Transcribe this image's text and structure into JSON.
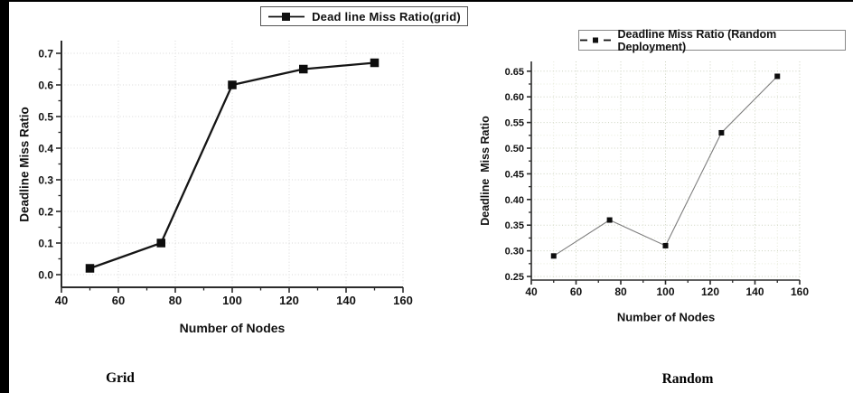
{
  "page": {
    "background": "#ffffff",
    "frame_color": "#000000"
  },
  "chart_data": [
    {
      "type": "line",
      "title": "Dead line Miss Ratio(grid)",
      "caption": "Grid",
      "xlabel": "Number of Nodes",
      "ylabel": "Deadline Miss Ratio",
      "x": [
        50,
        75,
        100,
        125,
        150
      ],
      "y": [
        0.02,
        0.1,
        0.6,
        0.65,
        0.67
      ],
      "xlim": [
        40,
        160
      ],
      "ylim": [
        -0.04,
        0.74
      ],
      "xticks": [
        40,
        60,
        80,
        100,
        120,
        140,
        160
      ],
      "yticks": [
        0.0,
        0.1,
        0.2,
        0.3,
        0.4,
        0.5,
        0.6,
        0.7
      ],
      "x_tick_labels": [
        "40",
        "60",
        "80",
        "100",
        "120",
        "140",
        "160"
      ],
      "y_tick_labels": [
        "0.0",
        "0.1",
        "0.2",
        "0.3",
        "0.4",
        "0.5",
        "0.6",
        "0.7"
      ],
      "x_minor_step": 10,
      "y_minor_step": 0.05,
      "grid": "dotted-gray",
      "legend_position": "top-center",
      "legend_glyph": "solid-line-square",
      "line": {
        "style": "solid",
        "width": 2.3,
        "color": "#151515"
      },
      "marker": {
        "shape": "square",
        "size": 9.5,
        "color": "#0d0d0d"
      }
    },
    {
      "type": "line",
      "title": "Deadline Miss Ratio (Random Deployment)",
      "caption": "Random",
      "xlabel": "Number of Nodes",
      "ylabel": "Deadline  Miss Ratio",
      "x": [
        50,
        75,
        100,
        125,
        150
      ],
      "y": [
        0.29,
        0.36,
        0.31,
        0.53,
        0.64
      ],
      "xlim": [
        40,
        160
      ],
      "ylim": [
        0.243,
        0.669
      ],
      "xticks": [
        40,
        60,
        80,
        100,
        120,
        140,
        160
      ],
      "yticks": [
        0.25,
        0.3,
        0.35,
        0.4,
        0.45,
        0.5,
        0.55,
        0.6,
        0.65
      ],
      "x_tick_labels": [
        "40",
        "60",
        "80",
        "100",
        "120",
        "140",
        "160"
      ],
      "y_tick_labels": [
        "0.25",
        "0.30",
        "0.35",
        "0.40",
        "0.45",
        "0.50",
        "0.55",
        "0.60",
        "0.65"
      ],
      "x_minor_step": 10,
      "y_minor_step": 0.025,
      "grid": "dotted-green",
      "legend_position": "top-right",
      "legend_glyph": "dash-square-dash",
      "line": {
        "style": "solid",
        "width": 1.1,
        "color": "#7d7d7d"
      },
      "marker": {
        "shape": "square",
        "size": 6,
        "color": "#0d0d0d"
      }
    }
  ]
}
